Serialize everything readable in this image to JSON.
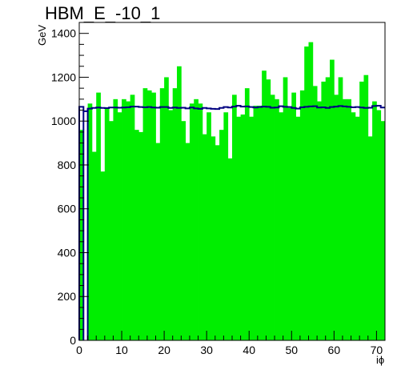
{
  "chart_data": {
    "type": "bar",
    "title": "HBM_E_-10_1",
    "xlabel": "iϕ",
    "ylabel": "GeV",
    "xlim": [
      0,
      72
    ],
    "ylim": [
      0,
      1450
    ],
    "xticks": [
      0,
      10,
      20,
      30,
      40,
      50,
      60,
      70
    ],
    "yticks": [
      0,
      200,
      400,
      600,
      800,
      1000,
      1200,
      1400
    ],
    "grid": false,
    "legend": "none",
    "colors": {
      "fill": "#00ee00",
      "reference_line": "#000080",
      "frame": "#000000"
    },
    "bins_x": [
      0,
      1,
      2,
      3,
      4,
      5,
      6,
      7,
      8,
      9,
      10,
      11,
      12,
      13,
      14,
      15,
      16,
      17,
      18,
      19,
      20,
      21,
      22,
      23,
      24,
      25,
      26,
      27,
      28,
      29,
      30,
      31,
      32,
      33,
      34,
      35,
      36,
      37,
      38,
      39,
      40,
      41,
      42,
      43,
      44,
      45,
      46,
      47,
      48,
      49,
      50,
      51,
      52,
      53,
      54,
      55,
      56,
      57,
      58,
      59,
      60,
      61,
      62,
      63,
      64,
      65,
      66,
      67,
      68,
      69,
      70,
      71
    ],
    "series": [
      {
        "values": [
          960,
          0,
          1080,
          860,
          1130,
          770,
          1060,
          1000,
          1100,
          1040,
          1100,
          1090,
          1120,
          960,
          950,
          1150,
          1140,
          1130,
          900,
          1150,
          1200,
          1050,
          1150,
          1250,
          1000,
          900,
          1080,
          1100,
          1080,
          940,
          1040,
          930,
          890,
          960,
          1040,
          830,
          1120,
          1020,
          1030,
          1150,
          1020,
          1070,
          1070,
          1230,
          1190,
          1120,
          1100,
          1040,
          1200,
          1060,
          1130,
          1020,
          1140,
          1340,
          1360,
          1160,
          1090,
          1180,
          1200,
          1280,
          1120,
          1200,
          1100,
          1100,
          1040,
          1020,
          1180,
          1210,
          930,
          1090,
          1050,
          1000
        ]
      },
      {
        "values": [
          1065,
          1045,
          1057,
          1060,
          1062,
          1060,
          1059,
          1062,
          1062,
          1061,
          1062,
          1063,
          1066,
          1066,
          1064,
          1063,
          1064,
          1062,
          1061,
          1064,
          1064,
          1060,
          1062,
          1060,
          1061,
          1058,
          1062,
          1058,
          1056,
          1060,
          1058,
          1056,
          1055,
          1060,
          1064,
          1062,
          1066,
          1070,
          1066,
          1067,
          1064,
          1062,
          1064,
          1066,
          1065,
          1061,
          1062,
          1068,
          1065,
          1064,
          1060,
          1057,
          1063,
          1065,
          1067,
          1068,
          1062,
          1063,
          1060,
          1064,
          1066,
          1069,
          1067,
          1065,
          1063,
          1064,
          1062,
          1060,
          1061,
          1069,
          1070,
          1062
        ]
      }
    ]
  }
}
